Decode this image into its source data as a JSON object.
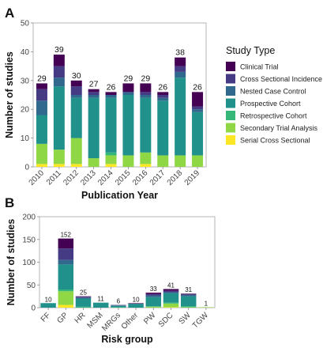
{
  "colors": {
    "Clinical Trial": "#440154",
    "Cross Sectional Incidence": "#443b84",
    "Nested Case Control": "#31688e",
    "Prospective Cohort": "#21918c",
    "Retrospective Cohort": "#35b779",
    "Secondary Trial Analysis": "#8fd744",
    "Serial Cross Sectional": "#fde725"
  },
  "chart_data": [
    {
      "panel": "A",
      "type": "bar",
      "stacked": true,
      "title": "",
      "xlabel": "Publication Year",
      "ylabel": "Number of studies",
      "ylim": [
        0,
        50
      ],
      "yticks": [
        0,
        10,
        20,
        30,
        40,
        50
      ],
      "categories": [
        "2010",
        "2011",
        "2012",
        "2013",
        "2014",
        "2015",
        "2016",
        "2017",
        "2018",
        "2019"
      ],
      "totals": [
        29,
        39,
        30,
        27,
        26,
        29,
        29,
        26,
        38,
        26
      ],
      "grid": false,
      "legend_title": "Study Type",
      "legend_position": "right",
      "series": [
        {
          "name": "Serial Cross Sectional",
          "values": [
            1,
            1,
            1,
            0,
            1,
            0,
            1,
            0,
            0,
            0
          ]
        },
        {
          "name": "Secondary Trial Analysis",
          "values": [
            7,
            5,
            9,
            3,
            3,
            4,
            4,
            4,
            4,
            4
          ]
        },
        {
          "name": "Retrospective Cohort",
          "values": [
            0,
            0,
            0,
            0,
            1,
            0,
            0,
            0,
            0,
            0
          ]
        },
        {
          "name": "Prospective Cohort",
          "values": [
            10,
            22,
            14,
            21,
            19,
            21,
            19,
            19,
            27,
            15
          ]
        },
        {
          "name": "Nested Case Control",
          "values": [
            5,
            3,
            1,
            1,
            1,
            1,
            1,
            1,
            2,
            1
          ]
        },
        {
          "name": "Cross Sectional Incidence",
          "values": [
            4,
            4,
            3,
            1,
            0,
            0,
            1,
            1,
            2,
            1
          ]
        },
        {
          "name": "Clinical Trial",
          "values": [
            2,
            4,
            2,
            1,
            1,
            3,
            3,
            1,
            3,
            5
          ]
        }
      ]
    },
    {
      "panel": "B",
      "type": "bar",
      "stacked": true,
      "title": "",
      "xlabel": "Risk group",
      "ylabel": "Number of studies",
      "ylim": [
        0,
        200
      ],
      "yticks": [
        0,
        50,
        100,
        150,
        200
      ],
      "categories": [
        "FF",
        "GP",
        "HR",
        "MSM",
        "MRGs",
        "Other",
        "PW",
        "SDC",
        "SW",
        "TGW"
      ],
      "totals": [
        10,
        152,
        25,
        11,
        6,
        10,
        33,
        41,
        31,
        1
      ],
      "grid": false,
      "series": [
        {
          "name": "Serial Cross Sectional",
          "values": [
            0,
            6,
            0,
            0,
            0,
            0,
            0,
            1,
            0,
            0
          ]
        },
        {
          "name": "Secondary Trial Analysis",
          "values": [
            0,
            30,
            0,
            0,
            0,
            0,
            2,
            8,
            1,
            1
          ]
        },
        {
          "name": "Retrospective Cohort",
          "values": [
            0,
            4,
            2,
            0,
            1,
            0,
            1,
            2,
            2,
            0
          ]
        },
        {
          "name": "Prospective Cohort",
          "values": [
            10,
            55,
            18,
            11,
            3,
            8,
            20,
            21,
            22,
            0
          ]
        },
        {
          "name": "Nested Case Control",
          "values": [
            0,
            10,
            2,
            0,
            1,
            1,
            4,
            2,
            3,
            0
          ]
        },
        {
          "name": "Cross Sectional Incidence",
          "values": [
            0,
            25,
            2,
            0,
            1,
            0,
            3,
            3,
            2,
            0
          ]
        },
        {
          "name": "Clinical Trial",
          "values": [
            0,
            22,
            1,
            0,
            0,
            1,
            3,
            4,
            1,
            0
          ]
        }
      ]
    }
  ],
  "legend": {
    "title": "Study Type",
    "items": [
      "Clinical Trial",
      "Cross Sectional Incidence",
      "Nested Case Control",
      "Prospective Cohort",
      "Retrospective Cohort",
      "Secondary Trial Analysis",
      "Serial Cross Sectional"
    ]
  }
}
